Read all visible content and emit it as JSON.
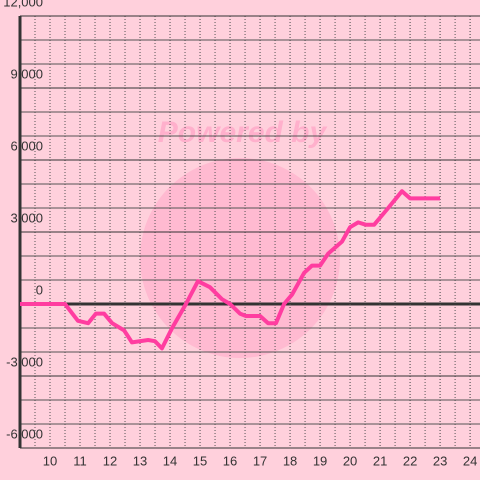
{
  "chart_data": {
    "type": "line",
    "watermark": "Powered by",
    "x": [
      9,
      10.5,
      10.93,
      11.27,
      11.53,
      11.8,
      12.07,
      12.47,
      12.73,
      13.27,
      13.5,
      13.73,
      14.07,
      14.53,
      14.93,
      15.33,
      15.73,
      16,
      16.33,
      16.53,
      17,
      17.27,
      17.53,
      17.8,
      18.07,
      18.47,
      18.73,
      19,
      19.27,
      19.73,
      20,
      20.27,
      20.53,
      20.8,
      21.27,
      21.73,
      22,
      23
    ],
    "series": [
      {
        "color": "#ff3da0",
        "values": [
          0,
          0,
          -700,
          -800,
          -400,
          -400,
          -800,
          -1100,
          -1600,
          -1500,
          -1550,
          -1850,
          -1000,
          0,
          950,
          700,
          200,
          0,
          -400,
          -500,
          -500,
          -800,
          -800,
          0,
          400,
          1300,
          1600,
          1600,
          2100,
          2600,
          3200,
          3400,
          3300,
          3300,
          4000,
          4700,
          4400,
          4400
        ]
      }
    ],
    "xlim": [
      9,
      24.33
    ],
    "xticks": [
      10,
      11,
      12,
      13,
      14,
      15,
      16,
      17,
      18,
      19,
      20,
      21,
      22,
      23,
      24
    ],
    "ylim": [
      -6000,
      12000
    ],
    "yticks": [
      {
        "value": -6000,
        "label": "-6,000"
      },
      {
        "value": -3000,
        "label": "-3,000"
      },
      0,
      {
        "value": 3000,
        "label": "3,000"
      },
      {
        "value": 6000,
        "label": "6,000"
      },
      {
        "value": 9000,
        "label": "9,000"
      },
      {
        "value": 12000,
        "label": "12,000"
      }
    ],
    "grid": true
  }
}
